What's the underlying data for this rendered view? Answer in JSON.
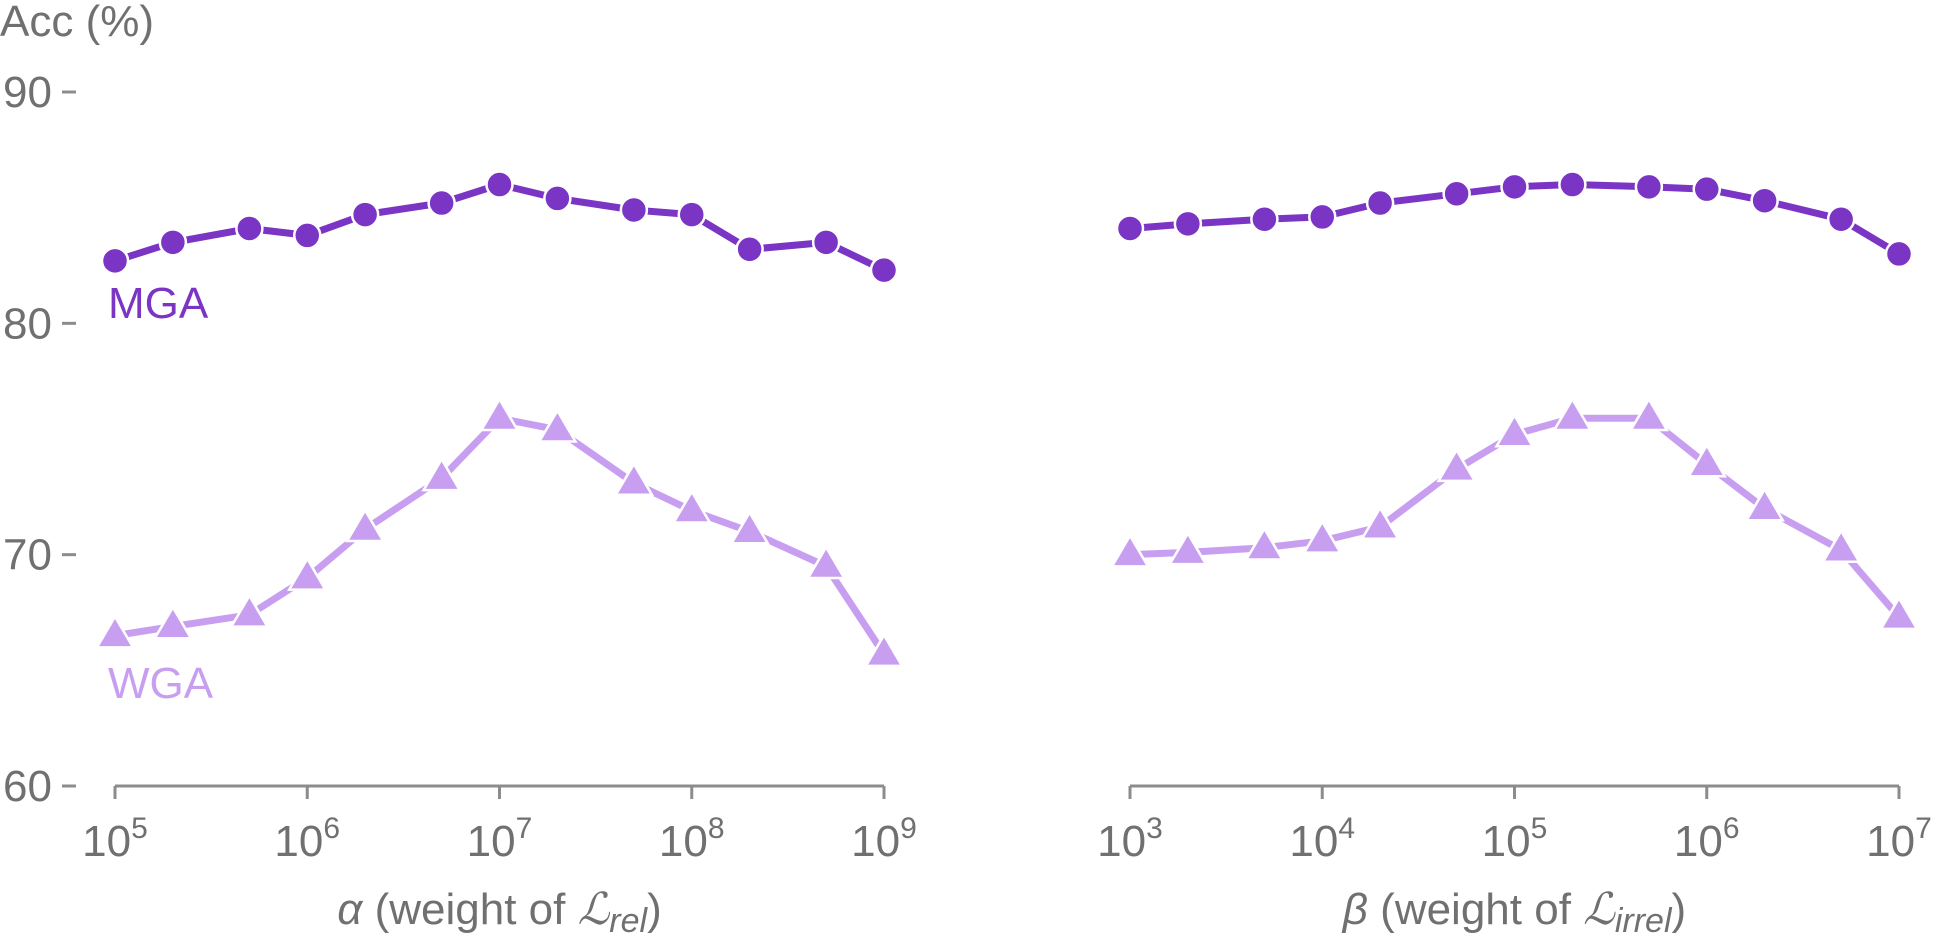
{
  "chart_data": [
    {
      "type": "line",
      "x_scale": "log",
      "x_ticks": [
        100000,
        1000000,
        10000000,
        100000000,
        1000000000
      ],
      "x_tick_labels": [
        {
          "base": "10",
          "exp": "5"
        },
        {
          "base": "10",
          "exp": "6"
        },
        {
          "base": "10",
          "exp": "7"
        },
        {
          "base": "10",
          "exp": "8"
        },
        {
          "base": "10",
          "exp": "9"
        }
      ],
      "xlabel": {
        "symbol": "α",
        "text": " (weight of ",
        "script": "ℒ",
        "sub": "rel",
        "close": ")"
      },
      "ylabel": "Acc (%)",
      "ylim": [
        60,
        90
      ],
      "y_ticks": [
        60,
        70,
        80,
        90
      ],
      "grid": false,
      "x": [
        100000,
        200000,
        500000,
        1000000,
        2000000,
        5000000,
        10000000,
        20000000,
        50000000,
        100000000,
        200000000,
        500000000,
        1000000000
      ],
      "series": [
        {
          "name": "MGA",
          "marker": "circle",
          "color": "#7b35c4",
          "values": [
            82.7,
            83.5,
            84.1,
            83.8,
            84.7,
            85.2,
            86.0,
            85.4,
            84.9,
            84.7,
            83.2,
            83.5,
            82.3
          ]
        },
        {
          "name": "WGA",
          "marker": "triangle",
          "color": "#c89ff0",
          "values": [
            66.5,
            66.9,
            67.4,
            69.0,
            71.1,
            73.3,
            75.9,
            75.4,
            73.1,
            71.9,
            71.0,
            69.5,
            65.7
          ]
        }
      ]
    },
    {
      "type": "line",
      "x_scale": "log",
      "x_ticks": [
        1000,
        10000,
        100000,
        1000000,
        10000000
      ],
      "x_tick_labels": [
        {
          "base": "10",
          "exp": "3"
        },
        {
          "base": "10",
          "exp": "4"
        },
        {
          "base": "10",
          "exp": "5"
        },
        {
          "base": "10",
          "exp": "6"
        },
        {
          "base": "10",
          "exp": "7"
        }
      ],
      "xlabel": {
        "symbol": "β",
        "text": " (weight of ",
        "script": "ℒ",
        "sub": "irrel",
        "close": ")"
      },
      "ylim": [
        60,
        90
      ],
      "grid": false,
      "x": [
        1000,
        2000,
        5000,
        10000,
        20000,
        50000,
        100000,
        200000,
        500000,
        1000000,
        2000000,
        5000000,
        10000000
      ],
      "series": [
        {
          "name": "MGA",
          "marker": "circle",
          "color": "#7b35c4",
          "values": [
            84.1,
            84.3,
            84.5,
            84.6,
            85.2,
            85.6,
            85.9,
            86.0,
            85.9,
            85.8,
            85.3,
            84.5,
            83.0
          ]
        },
        {
          "name": "WGA",
          "marker": "triangle",
          "color": "#c89ff0",
          "values": [
            70.0,
            70.1,
            70.3,
            70.6,
            71.2,
            73.7,
            75.2,
            75.9,
            75.9,
            73.9,
            72.0,
            70.2,
            67.3
          ]
        }
      ]
    }
  ]
}
